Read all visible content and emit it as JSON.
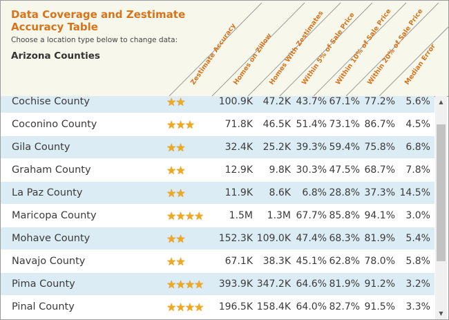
{
  "header": {
    "title": "Data Coverage and Zestimate Accuracy Table",
    "subtitle": "Choose a location type below to change data:",
    "location": "Arizona Counties"
  },
  "columns": [
    "Zestimate Accuracy",
    "Homes on Zillow",
    "Homes With Zestimates",
    "Within 5% of Sale Price",
    "Within 10% of Sale Price",
    "Within 20% of Sale Price",
    "Median Error"
  ],
  "rows": [
    {
      "county": "Cochise County",
      "stars": 2,
      "stars_text": "★★",
      "homes": "100.9K",
      "zest": "47.2K",
      "w5": "43.7%",
      "w10": "67.1%",
      "w20": "77.2%",
      "median": "5.6%"
    },
    {
      "county": "Coconino County",
      "stars": 3,
      "stars_text": "★★★",
      "homes": "71.8K",
      "zest": "46.5K",
      "w5": "51.4%",
      "w10": "73.1%",
      "w20": "86.7%",
      "median": "4.5%"
    },
    {
      "county": "Gila County",
      "stars": 2,
      "stars_text": "★★",
      "homes": "32.4K",
      "zest": "25.2K",
      "w5": "39.3%",
      "w10": "59.4%",
      "w20": "75.8%",
      "median": "6.8%"
    },
    {
      "county": "Graham County",
      "stars": 2,
      "stars_text": "★★",
      "homes": "12.9K",
      "zest": "9.8K",
      "w5": "30.3%",
      "w10": "47.5%",
      "w20": "68.7%",
      "median": "7.8%"
    },
    {
      "county": "La Paz County",
      "stars": 2,
      "stars_text": "★★",
      "homes": "11.9K",
      "zest": "8.6K",
      "w5": "6.8%",
      "w10": "28.8%",
      "w20": "37.3%",
      "median": "14.5%"
    },
    {
      "county": "Maricopa County",
      "stars": 4,
      "stars_text": "★★★★",
      "homes": "1.5M",
      "zest": "1.3M",
      "w5": "67.7%",
      "w10": "85.8%",
      "w20": "94.1%",
      "median": "3.0%"
    },
    {
      "county": "Mohave County",
      "stars": 2,
      "stars_text": "★★",
      "homes": "152.3K",
      "zest": "109.0K",
      "w5": "47.4%",
      "w10": "68.3%",
      "w20": "81.9%",
      "median": "5.4%"
    },
    {
      "county": "Navajo County",
      "stars": 2,
      "stars_text": "★★",
      "homes": "67.1K",
      "zest": "38.3K",
      "w5": "45.1%",
      "w10": "62.8%",
      "w20": "78.0%",
      "median": "5.8%"
    },
    {
      "county": "Pima County",
      "stars": 4,
      "stars_text": "★★★★",
      "homes": "393.9K",
      "zest": "347.2K",
      "w5": "64.6%",
      "w10": "81.9%",
      "w20": "91.2%",
      "median": "3.2%"
    },
    {
      "county": "Pinal County",
      "stars": 4,
      "stars_text": "★★★★",
      "homes": "196.5K",
      "zest": "158.4K",
      "w5": "64.0%",
      "w10": "82.7%",
      "w20": "91.5%",
      "median": "3.3%"
    }
  ],
  "scrollbar": {
    "up_icon": "▲",
    "down_icon": "▼"
  },
  "colors": {
    "accent": "#d9731a",
    "row_alt": "#dcecf5",
    "star": "#f0a81c",
    "header_bg": "#f7f7ec"
  }
}
